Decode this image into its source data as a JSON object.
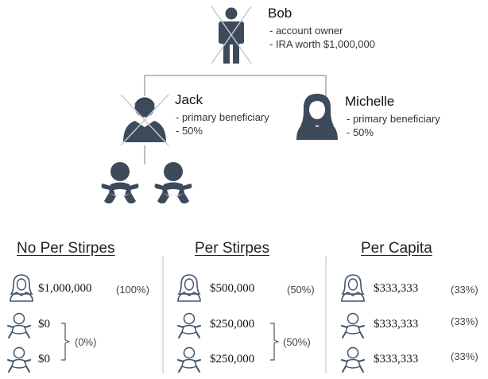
{
  "tree": {
    "owner": {
      "name": "Bob",
      "lines": [
        "- account owner",
        "- IRA worth $1,000,000"
      ],
      "crossed": true
    },
    "beneficiaries": [
      {
        "name": "Jack",
        "lines": [
          "- primary beneficiary",
          "- 50%"
        ],
        "crossed": true,
        "children": 2
      },
      {
        "name": "Michelle",
        "lines": [
          "- primary beneficiary",
          "- 50%"
        ],
        "crossed": false
      }
    ]
  },
  "scenarios": [
    {
      "title": "No Per Stirpes",
      "rows": [
        {
          "amount": "$1,000,000",
          "percent": "(100%)"
        },
        {
          "amount": "$0"
        },
        {
          "amount": "$0"
        }
      ],
      "bracket_percent": "(0%)"
    },
    {
      "title": "Per Stirpes",
      "rows": [
        {
          "amount": "$500,000",
          "percent": "(50%)"
        },
        {
          "amount": "$250,000"
        },
        {
          "amount": "$250,000"
        }
      ],
      "bracket_percent": "(50%)"
    },
    {
      "title": "Per Capita",
      "rows": [
        {
          "amount": "$333,333",
          "percent": "(33%)"
        },
        {
          "amount": "$333,333",
          "percent": "(33%)"
        },
        {
          "amount": "$333,333",
          "percent": "(33%)"
        }
      ]
    }
  ],
  "colors": {
    "icon_fill": "#3d4a5c",
    "connector": "#a8a8a8",
    "divider": "#bdbdbd",
    "outline_icon": "#44546a"
  }
}
